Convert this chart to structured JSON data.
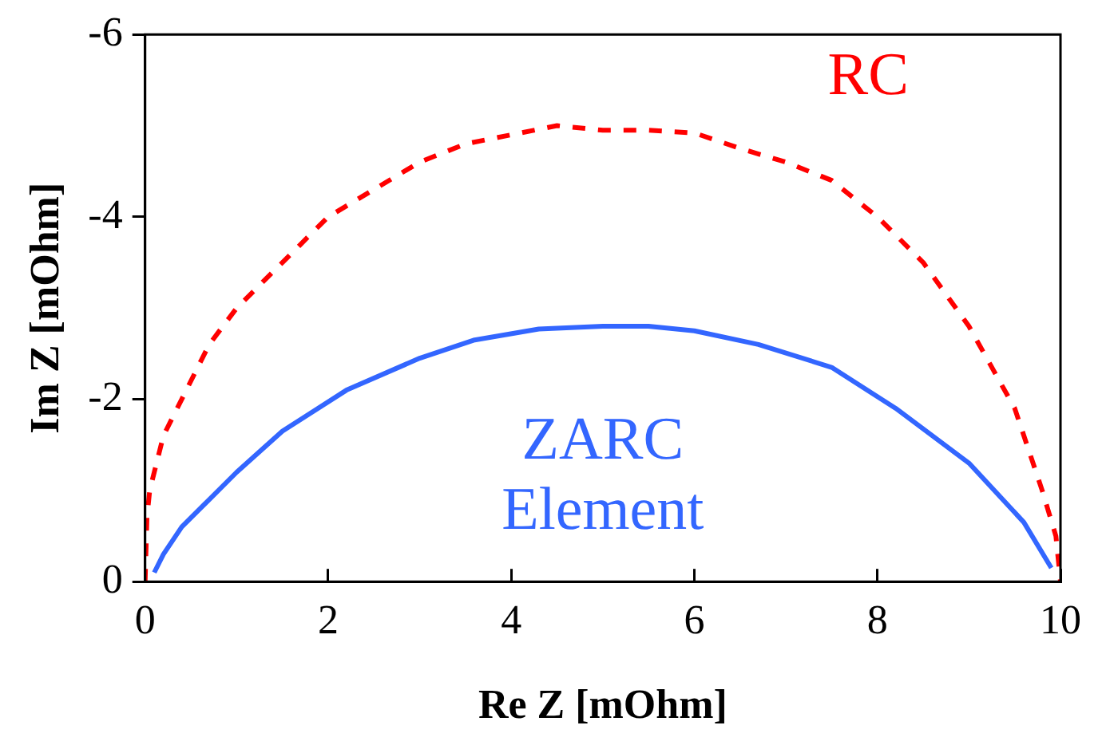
{
  "chart_data": {
    "type": "line",
    "xlabel": "Re Z [mOhm]",
    "ylabel": "Im Z [mOhm]",
    "xlim": [
      0,
      10
    ],
    "xticks": [
      0,
      2,
      4,
      6,
      8,
      10
    ],
    "ylim": [
      0,
      -6
    ],
    "yticks": [
      0,
      -2,
      -4,
      -6
    ],
    "grid": false,
    "legend": false,
    "marker": "none",
    "series": [
      {
        "name": "RC",
        "color": "#ff0000",
        "line_style": "dashed",
        "x": [
          0,
          0.02,
          0.05,
          0.2,
          0.4,
          0.7,
          1.0,
          1.5,
          2.0,
          2.5,
          3.0,
          3.5,
          4.0,
          4.5,
          5.0,
          5.5,
          6.0,
          6.5,
          7.0,
          7.5,
          8.0,
          8.5,
          9.0,
          9.5,
          9.8,
          9.95,
          10
        ],
        "values": [
          0,
          -0.7,
          -1.0,
          -1.6,
          -2.0,
          -2.6,
          -3.0,
          -3.5,
          -4.0,
          -4.3,
          -4.6,
          -4.8,
          -4.9,
          -5.0,
          -4.95,
          -4.95,
          -4.92,
          -4.75,
          -4.6,
          -4.4,
          -4.0,
          -3.5,
          -2.8,
          -1.9,
          -1.0,
          -0.5,
          0
        ]
      },
      {
        "name": "ZARC Element",
        "color": "#3366ff",
        "line_style": "solid",
        "x": [
          0.1,
          0.2,
          0.4,
          0.7,
          1.0,
          1.5,
          2.2,
          3.0,
          3.6,
          4.3,
          5.0,
          5.5,
          6.0,
          6.7,
          7.5,
          8.2,
          9.0,
          9.6,
          9.9
        ],
        "values": [
          -0.1,
          -0.3,
          -0.6,
          -0.9,
          -1.2,
          -1.65,
          -2.1,
          -2.45,
          -2.65,
          -2.77,
          -2.8,
          -2.8,
          -2.75,
          -2.6,
          -2.35,
          -1.9,
          -1.3,
          -0.65,
          -0.15
        ]
      }
    ]
  }
}
